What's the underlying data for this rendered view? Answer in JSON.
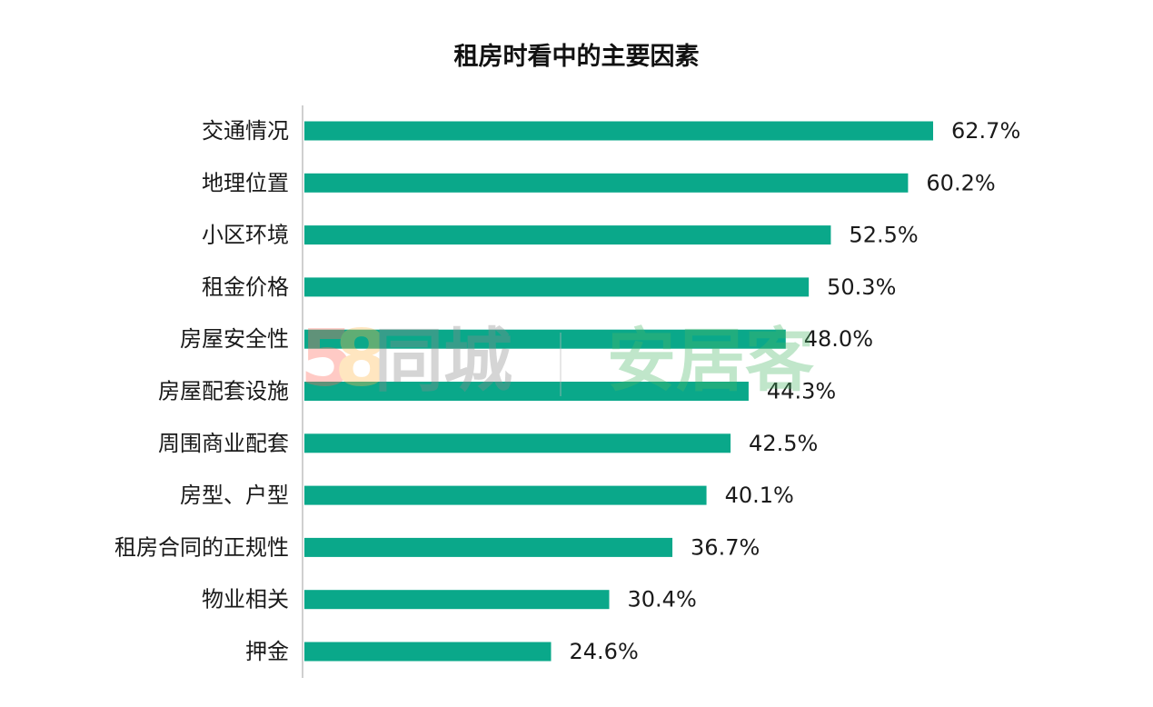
{
  "chart_data": {
    "type": "bar",
    "orientation": "horizontal",
    "title": "租房时看中的主要因素",
    "categories": [
      "交通情况",
      "地理位置",
      "小区环境",
      "租金价格",
      "房屋安全性",
      "房屋配套设施",
      "周围商业配套",
      "房型、户型",
      "租房合同的正规性",
      "物业相关",
      "押金"
    ],
    "values": [
      62.7,
      60.2,
      52.5,
      50.3,
      48.0,
      44.3,
      42.5,
      40.1,
      36.7,
      30.4,
      24.6
    ],
    "value_labels": [
      "62.7%",
      "60.2%",
      "52.5%",
      "50.3%",
      "48.0%",
      "44.3%",
      "42.5%",
      "40.1%",
      "36.7%",
      "30.4%",
      "24.6%"
    ],
    "unit": "%",
    "xlim": [
      0,
      62.7
    ],
    "grid": false,
    "legend": "none",
    "bar_color": "#0aa88a"
  },
  "watermark": {
    "digit_5": "5",
    "digit_8": "8",
    "brand_text": "同城",
    "product_text": "安居客",
    "digit_5_color": "#ff6b5b",
    "digit_8_color": "#ffb84d",
    "brand_color": "#8a8a8a",
    "product_color": "#4cb86a"
  }
}
